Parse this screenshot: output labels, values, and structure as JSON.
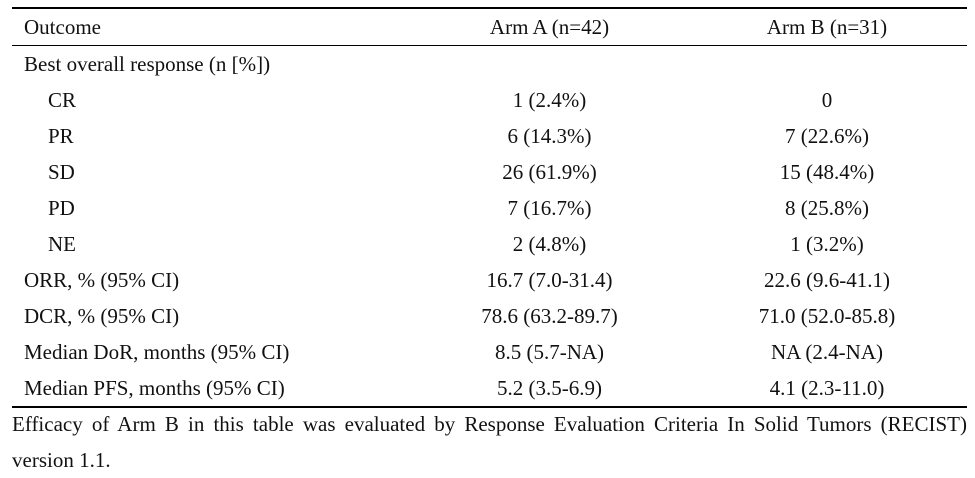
{
  "table": {
    "headers": [
      "Outcome",
      "Arm A (n=42)",
      "Arm B (n=31)"
    ],
    "rows": [
      {
        "label": "Best overall response (n [%])",
        "arm_a": "",
        "arm_b": "",
        "indent": false,
        "section": true
      },
      {
        "label": "CR",
        "arm_a": "1 (2.4%)",
        "arm_b": "0",
        "indent": true
      },
      {
        "label": "PR",
        "arm_a": "6 (14.3%)",
        "arm_b": "7 (22.6%)",
        "indent": true
      },
      {
        "label": "SD",
        "arm_a": "26 (61.9%)",
        "arm_b": "15 (48.4%)",
        "indent": true
      },
      {
        "label": "PD",
        "arm_a": "7 (16.7%)",
        "arm_b": "8 (25.8%)",
        "indent": true
      },
      {
        "label": "NE",
        "arm_a": "2 (4.8%)",
        "arm_b": "1 (3.2%)",
        "indent": true
      },
      {
        "label": "ORR, % (95% CI)",
        "arm_a": "16.7 (7.0-31.4)",
        "arm_b": "22.6 (9.6-41.1)",
        "indent": false
      },
      {
        "label": "DCR, % (95% CI)",
        "arm_a": "78.6 (63.2-89.7)",
        "arm_b": "71.0 (52.0-85.8)",
        "indent": false
      },
      {
        "label": "Median DoR, months (95% CI)",
        "arm_a": "8.5 (5.7-NA)",
        "arm_b": "NA (2.4-NA)",
        "indent": false
      },
      {
        "label": "Median PFS, months (95% CI)",
        "arm_a": "5.2 (3.5-6.9)",
        "arm_b": "4.1 (2.3-11.0)",
        "indent": false
      }
    ]
  },
  "footnote": "Efficacy of Arm B in this table was evaluated by Response Evaluation Criteria In Solid Tumors (RECIST) version 1.1."
}
